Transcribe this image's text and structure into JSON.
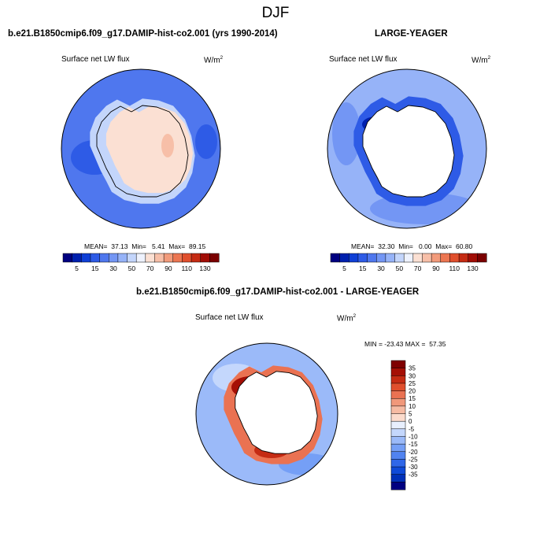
{
  "chart_data": {
    "type": "heatmap",
    "title": "DJF",
    "colors": {
      "abs": [
        "#000080",
        "#0020ae",
        "#0f3fd6",
        "#2e5be6",
        "#4f77ee",
        "#7396f4",
        "#96b3f8",
        "#c3d5fb",
        "#eef2fd",
        "#fbe0d3",
        "#f7bfa8",
        "#f29b7b",
        "#ec7652",
        "#e04f2d",
        "#c52b13",
        "#a10d05",
        "#7a0000"
      ],
      "diff": [
        "#000080",
        "#0030b8",
        "#0f4ad8",
        "#2f67e8",
        "#5183f0",
        "#759ff6",
        "#9bbaf9",
        "#c4d7fc",
        "#e8effd",
        "#fbdbcc",
        "#f6bba3",
        "#f1987a",
        "#ea7252",
        "#e04f2d",
        "#c52b13",
        "#a50f05",
        "#7f0000"
      ],
      "land": "#ffffff"
    },
    "panels": [
      {
        "id": "test",
        "heading": "b.e21.B1850cmip6.f09_g17.DAMIP-hist-co2.001 (yrs 1990-2014)",
        "variable": "Surface net LW flux",
        "units_prefix": "W/m",
        "units_exp": "2",
        "stats": "MEAN=  37.13  Min=   5.41  Max=  89.15",
        "colorbar_ticks": [
          "5",
          "15",
          "30",
          "50",
          "70",
          "90",
          "110",
          "130"
        ]
      },
      {
        "id": "obs",
        "heading": "LARGE-YEAGER",
        "variable": "Surface net LW flux",
        "units_prefix": "W/m",
        "units_exp": "2",
        "stats": "MEAN=  32.30  Min=   0.00  Max=  60.80",
        "colorbar_ticks": [
          "5",
          "15",
          "30",
          "50",
          "70",
          "90",
          "110",
          "130"
        ]
      },
      {
        "id": "diff",
        "heading": "b.e21.B1850cmip6.f09_g17.DAMIP-hist-co2.001 - LARGE-YEAGER",
        "variable": "Surface net LW flux",
        "units_prefix": "W/m",
        "units_exp": "2",
        "stats": "MIN = -23.43 MAX =  57.35",
        "colorbar_ticks": [
          "35",
          "30",
          "25",
          "20",
          "15",
          "10",
          "5",
          "0",
          "-5",
          "-10",
          "-15",
          "-20",
          "-25",
          "-30",
          "-35"
        ]
      }
    ]
  }
}
